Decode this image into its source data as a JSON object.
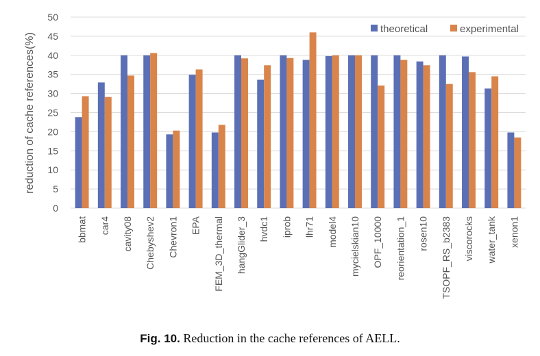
{
  "caption": {
    "label": "Fig. 10.",
    "text": "Reduction in the cache references of AELL."
  },
  "colors": {
    "theoretical": "#5b6fb5",
    "experimental": "#d9844a",
    "grid": "#d9d9d9",
    "tick_text": "#555555"
  },
  "chart_data": {
    "type": "bar",
    "title": "",
    "xlabel": "",
    "ylabel": "reduction of cache references(%)",
    "ylim": [
      0,
      50
    ],
    "yticks": [
      0,
      5,
      10,
      15,
      20,
      25,
      30,
      35,
      40,
      45,
      50
    ],
    "grid": true,
    "legend_position": "top-right",
    "categories": [
      "bbmat",
      "car4",
      "cavity08",
      "Chebyshev2",
      "Chevron1",
      "EPA",
      "FEM_3D_thermal",
      "hangGlider_3",
      "hvdc1",
      "iprob",
      "lhr71",
      "model4",
      "mycielskian10",
      "OPF_10000",
      "reorientation_1",
      "rosen10",
      "TSOPF_RS_b2383",
      "viscorocks",
      "water_tank",
      "xenon1"
    ],
    "series": [
      {
        "name": "theoretical",
        "values": [
          23.8,
          32.9,
          40.0,
          40.0,
          19.3,
          34.9,
          19.8,
          40.0,
          33.6,
          40.0,
          38.8,
          39.8,
          40.0,
          40.0,
          40.0,
          38.4,
          40.0,
          39.7,
          31.3,
          19.8
        ]
      },
      {
        "name": "experimental",
        "values": [
          29.3,
          29.1,
          34.7,
          40.6,
          20.3,
          36.3,
          21.8,
          39.2,
          37.4,
          39.3,
          46.0,
          40.0,
          40.0,
          32.1,
          38.8,
          37.4,
          32.5,
          35.6,
          34.5,
          18.5
        ]
      }
    ]
  }
}
